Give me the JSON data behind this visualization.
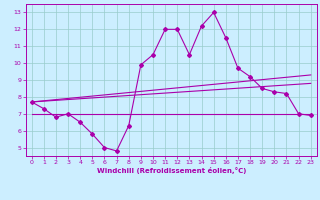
{
  "xlabel": "Windchill (Refroidissement éolien,°C)",
  "bg_color": "#cceeff",
  "line_color": "#aa00aa",
  "grid_color": "#99cccc",
  "xlim": [
    -0.5,
    23.5
  ],
  "ylim": [
    4.5,
    13.5
  ],
  "xticks": [
    0,
    1,
    2,
    3,
    4,
    5,
    6,
    7,
    8,
    9,
    10,
    11,
    12,
    13,
    14,
    15,
    16,
    17,
    18,
    19,
    20,
    21,
    22,
    23
  ],
  "yticks": [
    5,
    6,
    7,
    8,
    9,
    10,
    11,
    12,
    13
  ],
  "main_x": [
    0,
    1,
    2,
    3,
    4,
    5,
    6,
    7,
    8,
    9,
    10,
    11,
    12,
    13,
    14,
    15,
    16,
    17,
    18,
    19,
    20,
    21,
    22,
    23
  ],
  "main_y": [
    7.7,
    7.3,
    6.8,
    7.0,
    6.5,
    5.8,
    5.0,
    4.8,
    6.3,
    9.9,
    10.5,
    12.0,
    12.0,
    10.5,
    12.2,
    13.0,
    11.5,
    9.7,
    9.2,
    8.5,
    8.3,
    8.2,
    7.0,
    6.9
  ],
  "line2_x": [
    0,
    23
  ],
  "line2_y": [
    7.7,
    9.3
  ],
  "line3_x": [
    0,
    23
  ],
  "line3_y": [
    7.7,
    8.8
  ],
  "line4_x": [
    0,
    23
  ],
  "line4_y": [
    7.0,
    7.0
  ]
}
